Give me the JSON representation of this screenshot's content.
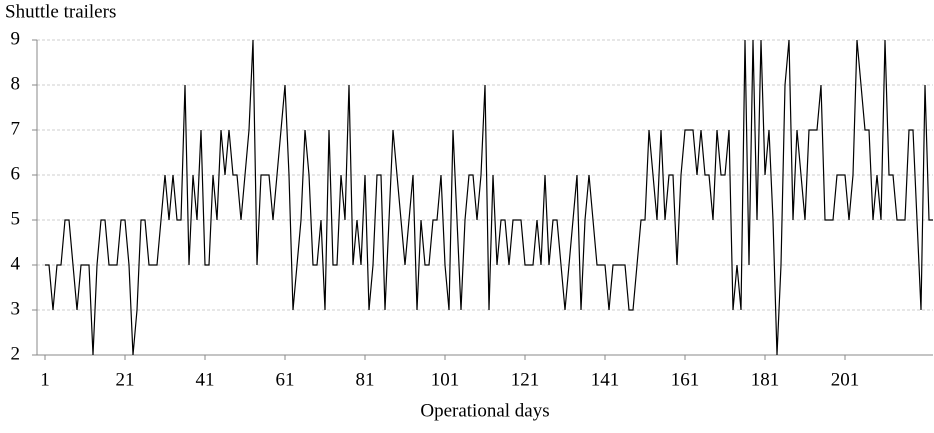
{
  "chart_data": {
    "type": "line",
    "title": "Shuttle trailers",
    "x_label": "Operational days",
    "x": [
      1,
      2,
      3,
      4,
      5,
      6,
      7,
      8,
      9,
      10,
      11,
      12,
      13,
      14,
      15,
      16,
      17,
      18,
      19,
      20,
      21,
      22,
      23,
      24,
      25,
      26,
      27,
      28,
      29,
      30,
      31,
      32,
      33,
      34,
      35,
      36,
      37,
      38,
      39,
      40,
      41,
      42,
      43,
      44,
      45,
      46,
      47,
      48,
      49,
      50,
      51,
      52,
      53,
      54,
      55,
      56,
      57,
      58,
      59,
      60,
      61,
      62,
      63,
      64,
      65,
      66,
      67,
      68,
      69,
      70,
      71,
      72,
      73,
      74,
      75,
      76,
      77,
      78,
      79,
      80,
      81,
      82,
      83,
      84,
      85,
      86,
      87,
      88,
      89,
      90,
      91,
      92,
      93,
      94,
      95,
      96,
      97,
      98,
      99,
      100,
      101,
      102,
      103,
      104,
      105,
      106,
      107,
      108,
      109,
      110,
      111,
      112,
      113,
      114,
      115,
      116,
      117,
      118,
      119,
      120,
      121,
      122,
      123,
      124,
      125,
      126,
      127,
      128,
      129,
      130,
      131,
      132,
      133,
      134,
      135,
      136,
      137,
      138,
      139,
      140,
      141,
      142,
      143,
      144,
      145,
      146,
      147,
      148,
      149,
      150,
      151,
      152,
      153,
      154,
      155,
      156,
      157,
      158,
      159,
      160,
      161,
      162,
      163,
      164,
      165,
      166,
      167,
      168,
      169,
      170,
      171,
      172,
      173,
      174,
      175,
      176,
      177,
      178,
      179,
      180,
      181,
      182,
      183,
      184,
      185,
      186,
      187,
      188,
      189,
      190,
      191,
      192,
      193,
      194,
      195,
      196,
      197,
      198,
      199,
      200,
      201,
      202,
      203,
      204,
      205,
      206,
      207,
      208,
      209,
      210,
      211,
      212,
      213,
      214,
      215,
      216,
      217,
      218,
      219,
      220,
      221,
      222,
      223
    ],
    "series": [
      {
        "name": "Shuttle trailers",
        "color": "#000000",
        "values": [
          4,
          4,
          3,
          4,
          4,
          5,
          5,
          4,
          3,
          4,
          4,
          4,
          2,
          4,
          5,
          5,
          4,
          4,
          4,
          5,
          5,
          4,
          2,
          3,
          5,
          5,
          4,
          4,
          4,
          5,
          6,
          5,
          6,
          5,
          5,
          8,
          4,
          6,
          5,
          7,
          4,
          4,
          6,
          5,
          7,
          6,
          7,
          6,
          6,
          5,
          6,
          7,
          9,
          4,
          6,
          6,
          6,
          5,
          6,
          7,
          8,
          6,
          3,
          4,
          5,
          7,
          6,
          4,
          4,
          5,
          3,
          7,
          4,
          4,
          6,
          5,
          8,
          4,
          5,
          4,
          6,
          3,
          4,
          6,
          6,
          3,
          5,
          7,
          6,
          5,
          4,
          5,
          6,
          3,
          5,
          4,
          4,
          5,
          5,
          6,
          4,
          3,
          7,
          5,
          3,
          5,
          6,
          6,
          5,
          6,
          8,
          3,
          6,
          4,
          5,
          5,
          4,
          5,
          5,
          5,
          4,
          4,
          4,
          5,
          4,
          6,
          4,
          5,
          5,
          4,
          3,
          4,
          5,
          6,
          3,
          5,
          6,
          5,
          4,
          4,
          4,
          3,
          4,
          4,
          4,
          4,
          3,
          3,
          4,
          5,
          5,
          7,
          6,
          5,
          7,
          5,
          6,
          6,
          4,
          6,
          7,
          7,
          7,
          6,
          7,
          6,
          6,
          5,
          7,
          6,
          6,
          7,
          3,
          4,
          3,
          9,
          4,
          9,
          5,
          9,
          6,
          7,
          5,
          2,
          4,
          8,
          9,
          5,
          7,
          6,
          5,
          7,
          7,
          7,
          8,
          5,
          5,
          5,
          6,
          6,
          6,
          5,
          6,
          9,
          8,
          7,
          7,
          5,
          6,
          5,
          9,
          6,
          6,
          5,
          5,
          5,
          7,
          7,
          5,
          3,
          8,
          5,
          5
        ]
      }
    ],
    "xlim": [
      -1,
      223
    ],
    "xticks": [
      1,
      21,
      41,
      61,
      81,
      101,
      121,
      141,
      161,
      181,
      201
    ],
    "ylim": [
      2,
      9
    ],
    "yticks": [
      2,
      3,
      4,
      5,
      6,
      7,
      8,
      9
    ],
    "grid": true
  }
}
